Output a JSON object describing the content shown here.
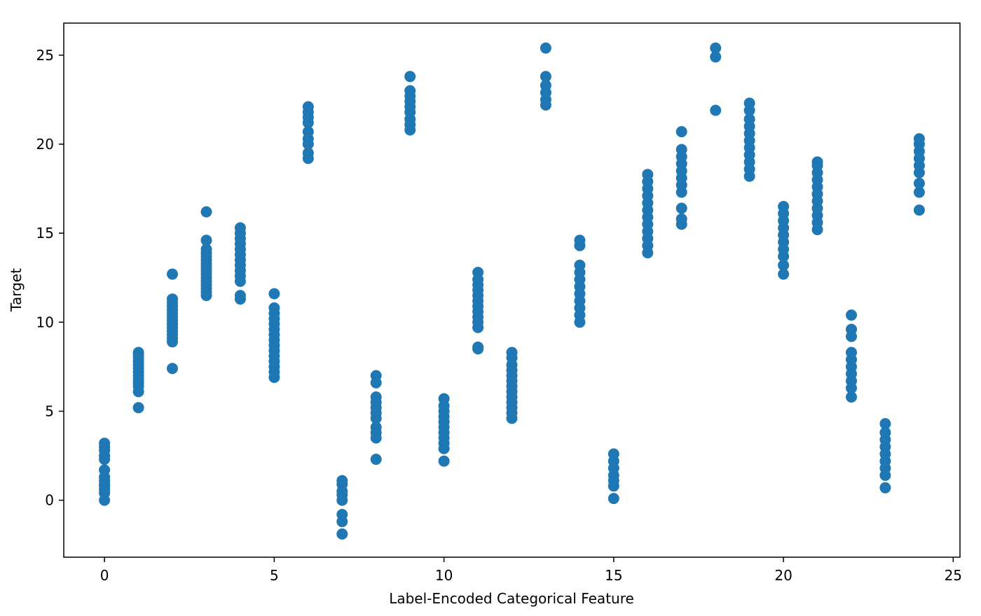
{
  "chart_data": {
    "type": "scatter",
    "title": "",
    "xlabel": "Label-Encoded Categorical Feature",
    "ylabel": "Target",
    "xlim": [
      -1.2,
      25.2
    ],
    "ylim": [
      -3.2,
      26.8
    ],
    "xticks": [
      0,
      5,
      10,
      15,
      20,
      25
    ],
    "yticks": [
      0,
      5,
      10,
      15,
      20,
      25
    ],
    "grid": false,
    "legend": "none",
    "marker_color": "#1f77b4",
    "series": [
      {
        "points": [
          [
            0,
            0.0
          ],
          [
            0,
            0.4
          ],
          [
            0,
            0.6
          ],
          [
            0,
            0.8
          ],
          [
            0,
            0.9
          ],
          [
            0,
            1.1
          ],
          [
            0,
            1.3
          ],
          [
            0,
            1.7
          ],
          [
            0,
            2.3
          ],
          [
            0,
            2.5
          ],
          [
            0,
            2.8
          ],
          [
            0,
            3.0
          ],
          [
            0,
            3.2
          ],
          [
            1,
            5.2
          ],
          [
            1,
            6.1
          ],
          [
            1,
            6.4
          ],
          [
            1,
            6.6
          ],
          [
            1,
            6.8
          ],
          [
            1,
            7.0
          ],
          [
            1,
            7.2
          ],
          [
            1,
            7.4
          ],
          [
            1,
            7.6
          ],
          [
            1,
            7.8
          ],
          [
            1,
            8.0
          ],
          [
            1,
            8.2
          ],
          [
            1,
            8.3
          ],
          [
            2,
            7.4
          ],
          [
            2,
            8.9
          ],
          [
            2,
            9.1
          ],
          [
            2,
            9.3
          ],
          [
            2,
            9.5
          ],
          [
            2,
            9.7
          ],
          [
            2,
            9.9
          ],
          [
            2,
            10.1
          ],
          [
            2,
            10.3
          ],
          [
            2,
            10.5
          ],
          [
            2,
            10.7
          ],
          [
            2,
            10.9
          ],
          [
            2,
            11.1
          ],
          [
            2,
            11.3
          ],
          [
            2,
            12.7
          ],
          [
            3,
            11.5
          ],
          [
            3,
            11.7
          ],
          [
            3,
            11.9
          ],
          [
            3,
            12.1
          ],
          [
            3,
            12.3
          ],
          [
            3,
            12.5
          ],
          [
            3,
            12.7
          ],
          [
            3,
            12.9
          ],
          [
            3,
            13.1
          ],
          [
            3,
            13.3
          ],
          [
            3,
            13.5
          ],
          [
            3,
            13.7
          ],
          [
            3,
            13.9
          ],
          [
            3,
            14.1
          ],
          [
            3,
            14.6
          ],
          [
            3,
            16.2
          ],
          [
            4,
            11.3
          ],
          [
            4,
            11.5
          ],
          [
            4,
            12.3
          ],
          [
            4,
            12.6
          ],
          [
            4,
            12.9
          ],
          [
            4,
            13.2
          ],
          [
            4,
            13.5
          ],
          [
            4,
            13.8
          ],
          [
            4,
            14.1
          ],
          [
            4,
            14.4
          ],
          [
            4,
            14.7
          ],
          [
            4,
            15.0
          ],
          [
            4,
            15.3
          ],
          [
            5,
            6.9
          ],
          [
            5,
            7.2
          ],
          [
            5,
            7.5
          ],
          [
            5,
            7.8
          ],
          [
            5,
            8.1
          ],
          [
            5,
            8.4
          ],
          [
            5,
            8.7
          ],
          [
            5,
            9.0
          ],
          [
            5,
            9.3
          ],
          [
            5,
            9.6
          ],
          [
            5,
            9.9
          ],
          [
            5,
            10.2
          ],
          [
            5,
            10.5
          ],
          [
            5,
            10.8
          ],
          [
            5,
            11.6
          ],
          [
            6,
            19.2
          ],
          [
            6,
            19.5
          ],
          [
            6,
            20.0
          ],
          [
            6,
            20.3
          ],
          [
            6,
            20.7
          ],
          [
            6,
            21.2
          ],
          [
            6,
            21.5
          ],
          [
            6,
            21.8
          ],
          [
            6,
            22.1
          ],
          [
            7,
            -1.9
          ],
          [
            7,
            -1.2
          ],
          [
            7,
            -0.8
          ],
          [
            7,
            0.0
          ],
          [
            7,
            0.3
          ],
          [
            7,
            0.5
          ],
          [
            7,
            0.9
          ],
          [
            7,
            1.1
          ],
          [
            8,
            2.3
          ],
          [
            8,
            3.5
          ],
          [
            8,
            3.8
          ],
          [
            8,
            4.1
          ],
          [
            8,
            4.6
          ],
          [
            8,
            4.9
          ],
          [
            8,
            5.2
          ],
          [
            8,
            5.5
          ],
          [
            8,
            5.8
          ],
          [
            8,
            6.6
          ],
          [
            8,
            7.0
          ],
          [
            9,
            20.8
          ],
          [
            9,
            21.1
          ],
          [
            9,
            21.4
          ],
          [
            9,
            21.8
          ],
          [
            9,
            22.1
          ],
          [
            9,
            22.4
          ],
          [
            9,
            22.7
          ],
          [
            9,
            23.0
          ],
          [
            9,
            23.8
          ],
          [
            10,
            2.2
          ],
          [
            10,
            2.9
          ],
          [
            10,
            3.2
          ],
          [
            10,
            3.5
          ],
          [
            10,
            3.8
          ],
          [
            10,
            4.1
          ],
          [
            10,
            4.4
          ],
          [
            10,
            4.7
          ],
          [
            10,
            5.0
          ],
          [
            10,
            5.3
          ],
          [
            10,
            5.7
          ],
          [
            11,
            8.5
          ],
          [
            11,
            8.6
          ],
          [
            11,
            9.7
          ],
          [
            11,
            10.0
          ],
          [
            11,
            10.3
          ],
          [
            11,
            10.6
          ],
          [
            11,
            10.9
          ],
          [
            11,
            11.2
          ],
          [
            11,
            11.5
          ],
          [
            11,
            11.8
          ],
          [
            11,
            12.1
          ],
          [
            11,
            12.4
          ],
          [
            11,
            12.8
          ],
          [
            12,
            4.6
          ],
          [
            12,
            4.9
          ],
          [
            12,
            5.2
          ],
          [
            12,
            5.5
          ],
          [
            12,
            5.8
          ],
          [
            12,
            6.1
          ],
          [
            12,
            6.4
          ],
          [
            12,
            6.7
          ],
          [
            12,
            7.0
          ],
          [
            12,
            7.3
          ],
          [
            12,
            7.6
          ],
          [
            12,
            8.0
          ],
          [
            12,
            8.3
          ],
          [
            13,
            22.2
          ],
          [
            13,
            22.5
          ],
          [
            13,
            22.9
          ],
          [
            13,
            23.3
          ],
          [
            13,
            23.8
          ],
          [
            13,
            25.4
          ],
          [
            14,
            10.0
          ],
          [
            14,
            10.4
          ],
          [
            14,
            10.8
          ],
          [
            14,
            11.2
          ],
          [
            14,
            11.6
          ],
          [
            14,
            12.0
          ],
          [
            14,
            12.4
          ],
          [
            14,
            12.8
          ],
          [
            14,
            13.2
          ],
          [
            14,
            14.3
          ],
          [
            14,
            14.6
          ],
          [
            15,
            0.1
          ],
          [
            15,
            0.8
          ],
          [
            15,
            1.1
          ],
          [
            15,
            1.4
          ],
          [
            15,
            1.8
          ],
          [
            15,
            2.2
          ],
          [
            15,
            2.6
          ],
          [
            16,
            13.9
          ],
          [
            16,
            14.3
          ],
          [
            16,
            14.7
          ],
          [
            16,
            15.1
          ],
          [
            16,
            15.5
          ],
          [
            16,
            15.9
          ],
          [
            16,
            16.3
          ],
          [
            16,
            16.7
          ],
          [
            16,
            17.1
          ],
          [
            16,
            17.5
          ],
          [
            16,
            17.9
          ],
          [
            16,
            18.3
          ],
          [
            17,
            15.5
          ],
          [
            17,
            15.8
          ],
          [
            17,
            16.4
          ],
          [
            17,
            17.3
          ],
          [
            17,
            17.7
          ],
          [
            17,
            18.1
          ],
          [
            17,
            18.5
          ],
          [
            17,
            18.9
          ],
          [
            17,
            19.3
          ],
          [
            17,
            19.7
          ],
          [
            17,
            20.7
          ],
          [
            18,
            21.9
          ],
          [
            18,
            24.9
          ],
          [
            18,
            25.4
          ],
          [
            19,
            18.2
          ],
          [
            19,
            18.6
          ],
          [
            19,
            19.0
          ],
          [
            19,
            19.4
          ],
          [
            19,
            19.8
          ],
          [
            19,
            20.2
          ],
          [
            19,
            20.6
          ],
          [
            19,
            21.0
          ],
          [
            19,
            21.4
          ],
          [
            19,
            21.9
          ],
          [
            19,
            22.3
          ],
          [
            20,
            12.7
          ],
          [
            20,
            13.2
          ],
          [
            20,
            13.7
          ],
          [
            20,
            14.1
          ],
          [
            20,
            14.5
          ],
          [
            20,
            14.9
          ],
          [
            20,
            15.3
          ],
          [
            20,
            15.7
          ],
          [
            20,
            16.1
          ],
          [
            20,
            16.5
          ],
          [
            21,
            15.2
          ],
          [
            21,
            15.6
          ],
          [
            21,
            16.0
          ],
          [
            21,
            16.4
          ],
          [
            21,
            16.8
          ],
          [
            21,
            17.2
          ],
          [
            21,
            17.6
          ],
          [
            21,
            18.0
          ],
          [
            21,
            18.4
          ],
          [
            21,
            18.8
          ],
          [
            21,
            19.0
          ],
          [
            22,
            5.8
          ],
          [
            22,
            6.3
          ],
          [
            22,
            6.7
          ],
          [
            22,
            7.1
          ],
          [
            22,
            7.5
          ],
          [
            22,
            7.9
          ],
          [
            22,
            8.3
          ],
          [
            22,
            9.2
          ],
          [
            22,
            9.6
          ],
          [
            22,
            10.4
          ],
          [
            23,
            0.7
          ],
          [
            23,
            1.4
          ],
          [
            23,
            1.8
          ],
          [
            23,
            2.2
          ],
          [
            23,
            2.6
          ],
          [
            23,
            3.0
          ],
          [
            23,
            3.4
          ],
          [
            23,
            3.8
          ],
          [
            23,
            4.3
          ],
          [
            24,
            16.3
          ],
          [
            24,
            17.3
          ],
          [
            24,
            17.8
          ],
          [
            24,
            18.4
          ],
          [
            24,
            18.8
          ],
          [
            24,
            19.2
          ],
          [
            24,
            19.6
          ],
          [
            24,
            20.0
          ],
          [
            24,
            20.3
          ]
        ]
      }
    ]
  }
}
